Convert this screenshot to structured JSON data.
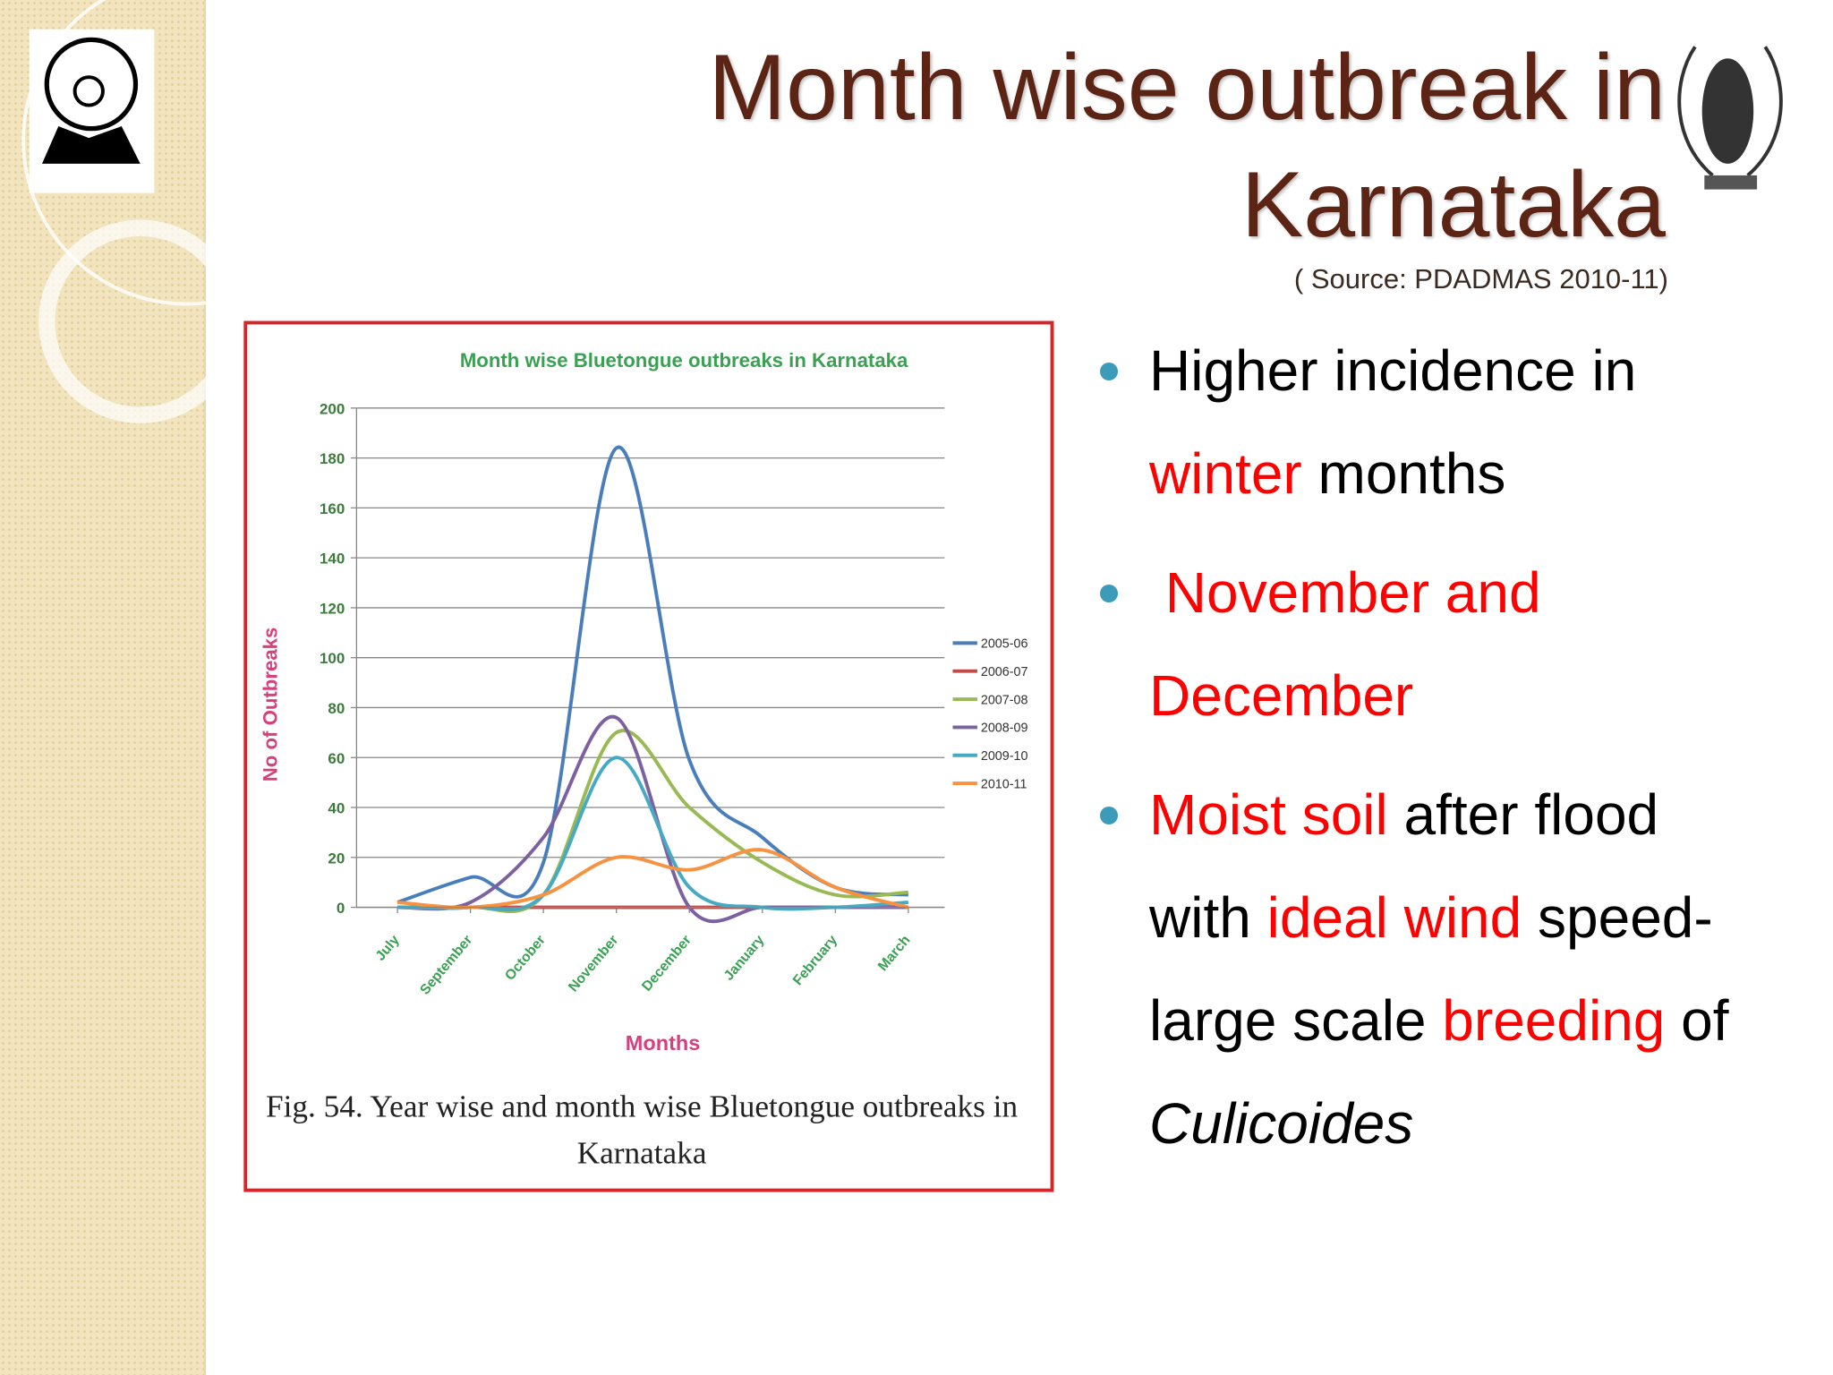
{
  "slide": {
    "title": [
      "Month wise outbreak in",
      "Karnataka"
    ],
    "subtitle": "( Source: PDADMAS 2010-11)",
    "bullets": [
      [
        {
          "text": "Higher incidence in "
        },
        {
          "text": "winter",
          "color": "#ff0000"
        },
        {
          "text": " months"
        }
      ],
      [
        {
          "text": " November and December",
          "color": "#ff0000"
        }
      ],
      [
        {
          "text": "Moist soil",
          "color": "#ff0000"
        },
        {
          "text": " after flood with "
        },
        {
          "text": "ideal wind",
          "color": "#ff0000"
        },
        {
          "text": " speed- large scale "
        },
        {
          "text": "breeding",
          "color": "#ff0000"
        },
        {
          "text": " of "
        },
        {
          "text": "Culicoides",
          "italic": true
        }
      ]
    ]
  },
  "chart_data": {
    "type": "line",
    "title": "Month wise Bluetongue outbreaks in Karnataka",
    "x_label": "Months",
    "y_label": "No of Outbreaks",
    "caption": [
      "Fig. 54. Year wise and month wise Bluetongue outbreaks in",
      "Karnataka"
    ],
    "categories": [
      "July",
      "September",
      "October",
      "November",
      "December",
      "January",
      "February",
      "March"
    ],
    "ylim": [
      0,
      200
    ],
    "yticks": [
      0,
      20,
      40,
      60,
      80,
      100,
      120,
      140,
      160,
      180,
      200
    ],
    "grid": true,
    "smooth": true,
    "legend": "right",
    "series": [
      {
        "name": "2005-06",
        "color": "#4a7ebb",
        "values": [
          2,
          12,
          18,
          184,
          59,
          28,
          8,
          5
        ]
      },
      {
        "name": "2006-07",
        "color": "#be4b48",
        "values": [
          0,
          0,
          0,
          0,
          0,
          0,
          0,
          0
        ]
      },
      {
        "name": "2007-08",
        "color": "#98b954",
        "values": [
          0,
          0,
          5,
          70,
          40,
          18,
          5,
          6
        ]
      },
      {
        "name": "2008-09",
        "color": "#7d60a0",
        "values": [
          0,
          2,
          28,
          76,
          0,
          0,
          0,
          0
        ]
      },
      {
        "name": "2009-10",
        "color": "#46aac5",
        "values": [
          0,
          0,
          5,
          60,
          8,
          0,
          0,
          2
        ]
      },
      {
        "name": "2010-11",
        "color": "#f69240",
        "values": [
          2,
          0,
          5,
          20,
          15,
          23,
          8,
          0
        ]
      }
    ]
  }
}
